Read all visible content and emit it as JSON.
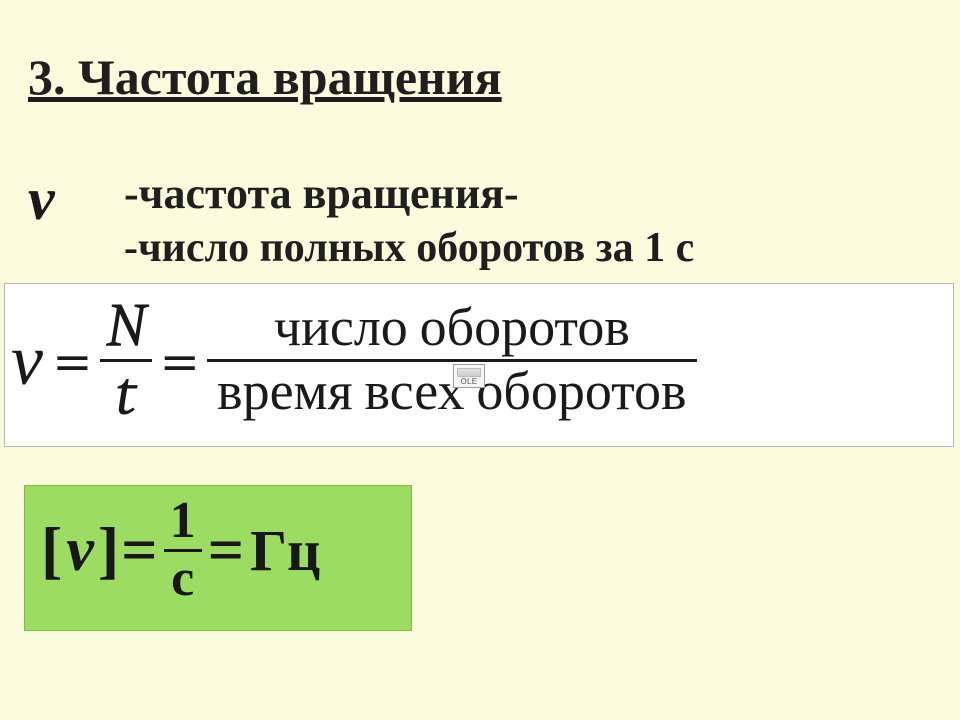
{
  "colors": {
    "page_bg": "#fbfcde",
    "text": "#1f1f1f",
    "formula_box_bg": "#ffffff",
    "formula_box_border": "#b8b8b8",
    "unit_box_bg": "#9cdc62",
    "unit_box_border": "#7cc040",
    "bar": "#1a1a1a"
  },
  "typography": {
    "family": "Times New Roman",
    "title_size_pt": 38,
    "body_size_pt": 32,
    "formula_size_pt": 54,
    "unit_size_pt": 48
  },
  "title": "3. Частота вращения",
  "symbol_nu": "ν",
  "def_line1": "-частота вращения-",
  "def_line2": "-число полных оборотов за 1 с",
  "formula": {
    "lhs": "ν",
    "eq": "=",
    "frac1": {
      "num": "N",
      "den": "t"
    },
    "frac2": {
      "num": "число оборотов",
      "den": "время всех оборотов"
    }
  },
  "ole_label": "OLE",
  "units": {
    "open_bracket": "[",
    "nu": "ν",
    "close_bracket": "]",
    "eq": "=",
    "frac": {
      "num": "1",
      "den": "с"
    },
    "hz": "Гц"
  }
}
